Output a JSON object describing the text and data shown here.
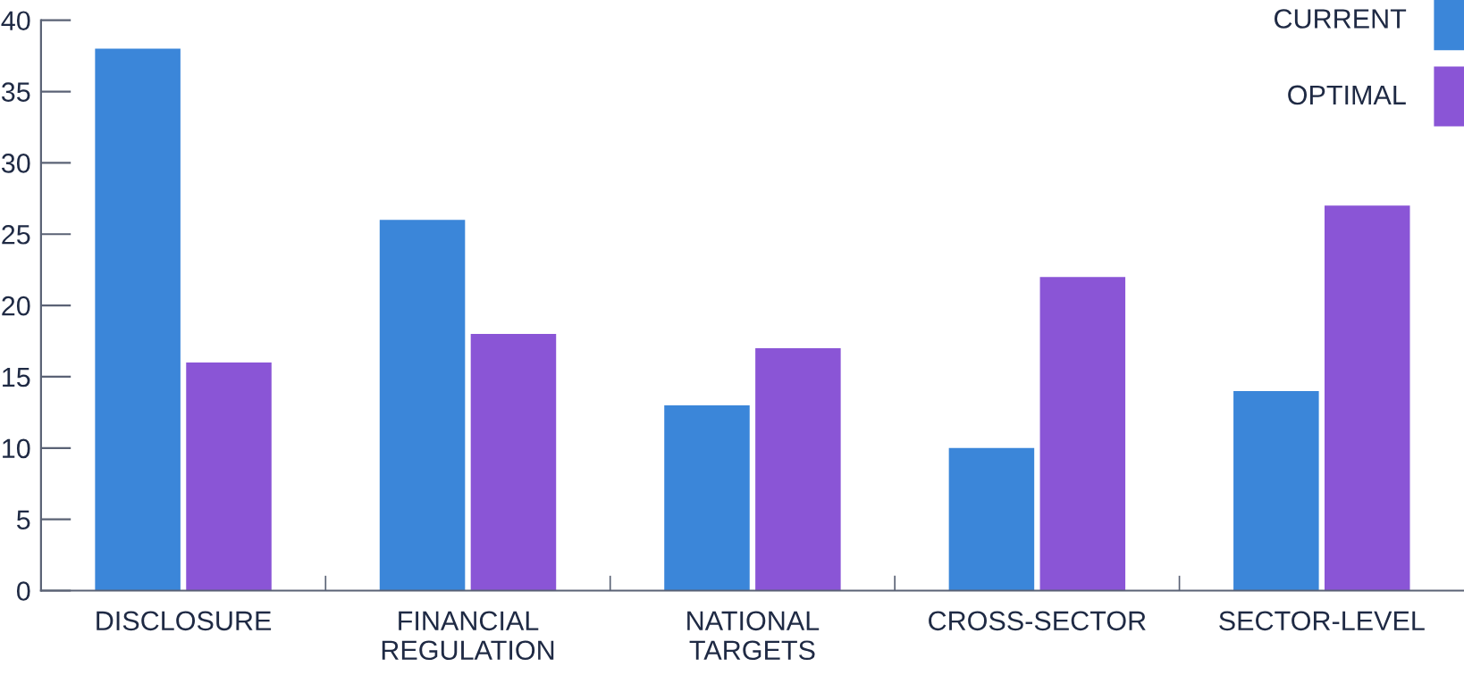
{
  "chart_data": {
    "type": "bar",
    "categories": [
      "DISCLOSURE",
      "FINANCIAL\nREGULATION",
      "NATIONAL\nTARGETS",
      "CROSS-SECTOR",
      "SECTOR-LEVEL"
    ],
    "series": [
      {
        "name": "CURRENT",
        "color": "#3b86d9",
        "values": [
          38,
          26,
          13,
          10,
          14
        ]
      },
      {
        "name": "OPTIMAL",
        "color": "#8a55d6",
        "values": [
          16,
          18,
          17,
          22,
          27
        ]
      }
    ],
    "ylim": [
      0,
      40
    ],
    "yticks": [
      0,
      5,
      10,
      15,
      20,
      25,
      30,
      35,
      40
    ],
    "grid": false,
    "legend": "top right"
  }
}
